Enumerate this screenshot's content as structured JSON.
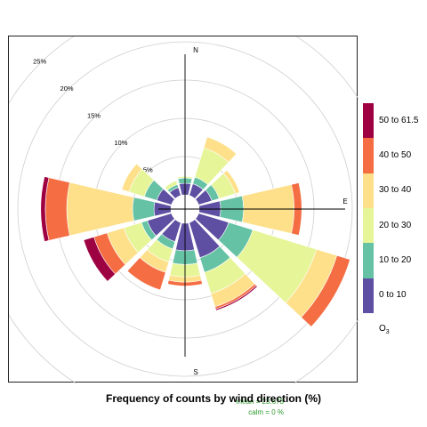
{
  "chart_data": {
    "type": "polar-stacked-bar",
    "title": "Frequency of counts by wind direction (%)",
    "compass_labels": {
      "N": "N",
      "E": "E",
      "S": "S"
    },
    "grid": true,
    "grid_rings_percent": [
      5,
      10,
      15,
      20,
      25
    ],
    "grid_ring_labels": [
      "5%",
      "10%",
      "15%",
      "20%",
      "25%"
    ],
    "max_percent": 25,
    "legend": {
      "title": "O3",
      "title_main": "O",
      "title_sub": "3",
      "placement": "right",
      "bins": [
        {
          "label": "0 to 10",
          "color": "#5E4FA2"
        },
        {
          "label": "10 to 20",
          "color": "#66C2A5"
        },
        {
          "label": "20 to 30",
          "color": "#E6F598"
        },
        {
          "label": "30 to 40",
          "color": "#FEE08B"
        },
        {
          "label": "40 to 50",
          "color": "#F46D43"
        },
        {
          "label": "50 to 61.5",
          "color": "#9E0142"
        }
      ]
    },
    "directions_deg": [
      0,
      30,
      60,
      90,
      120,
      150,
      180,
      210,
      240,
      270,
      300,
      330
    ],
    "cumulative_percent": [
      [
        1.5,
        2.2,
        2.4,
        2.4,
        2.4,
        2.4
      ],
      [
        1.6,
        2.5,
        6.5,
        8.0,
        8.0,
        8.0
      ],
      [
        1.8,
        2.8,
        5.0,
        5.6,
        5.6,
        5.6
      ],
      [
        2.8,
        5.8,
        5.8,
        12.4,
        13.4,
        13.4
      ],
      [
        4.1,
        7.4,
        16.1,
        18.9,
        20.7,
        20.7
      ],
      [
        4.8,
        6.8,
        9.7,
        11.5,
        11.8,
        12.0
      ],
      [
        3.6,
        5.4,
        7.0,
        7.7,
        8.2,
        8.2
      ],
      [
        2.6,
        3.6,
        5.4,
        6.8,
        9.2,
        9.2
      ],
      [
        3.3,
        4.1,
        6.5,
        8.8,
        10.6,
        12.0
      ],
      [
        2.2,
        5.0,
        5.0,
        13.6,
        16.4,
        17.0
      ],
      [
        2.0,
        3.7,
        5.8,
        6.8,
        6.8,
        6.8
      ],
      [
        1.1,
        1.5,
        2.0,
        2.0,
        2.0,
        2.0
      ]
    ],
    "stats": {
      "mean": "mean = 23.673",
      "calm": "calm = 0 %"
    }
  }
}
